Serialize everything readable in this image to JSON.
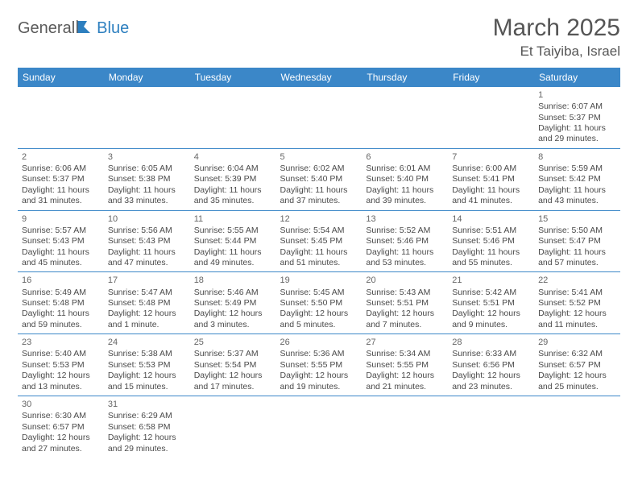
{
  "logo": {
    "part1": "General",
    "part2": "Blue"
  },
  "title": "March 2025",
  "location": "Et Taiyiba, Israel",
  "colors": {
    "header_bg": "#3b87c8",
    "header_text": "#ffffff",
    "border": "#3b87c8",
    "text": "#4a4a4a",
    "title": "#555555",
    "logo_gray": "#5a5a5a",
    "logo_blue": "#2d7fbf"
  },
  "weekdays": [
    "Sunday",
    "Monday",
    "Tuesday",
    "Wednesday",
    "Thursday",
    "Friday",
    "Saturday"
  ],
  "weeks": [
    [
      null,
      null,
      null,
      null,
      null,
      null,
      {
        "n": "1",
        "sr": "6:07 AM",
        "ss": "5:37 PM",
        "dl": "11 hours and 29 minutes."
      }
    ],
    [
      {
        "n": "2",
        "sr": "6:06 AM",
        "ss": "5:37 PM",
        "dl": "11 hours and 31 minutes."
      },
      {
        "n": "3",
        "sr": "6:05 AM",
        "ss": "5:38 PM",
        "dl": "11 hours and 33 minutes."
      },
      {
        "n": "4",
        "sr": "6:04 AM",
        "ss": "5:39 PM",
        "dl": "11 hours and 35 minutes."
      },
      {
        "n": "5",
        "sr": "6:02 AM",
        "ss": "5:40 PM",
        "dl": "11 hours and 37 minutes."
      },
      {
        "n": "6",
        "sr": "6:01 AM",
        "ss": "5:40 PM",
        "dl": "11 hours and 39 minutes."
      },
      {
        "n": "7",
        "sr": "6:00 AM",
        "ss": "5:41 PM",
        "dl": "11 hours and 41 minutes."
      },
      {
        "n": "8",
        "sr": "5:59 AM",
        "ss": "5:42 PM",
        "dl": "11 hours and 43 minutes."
      }
    ],
    [
      {
        "n": "9",
        "sr": "5:57 AM",
        "ss": "5:43 PM",
        "dl": "11 hours and 45 minutes."
      },
      {
        "n": "10",
        "sr": "5:56 AM",
        "ss": "5:43 PM",
        "dl": "11 hours and 47 minutes."
      },
      {
        "n": "11",
        "sr": "5:55 AM",
        "ss": "5:44 PM",
        "dl": "11 hours and 49 minutes."
      },
      {
        "n": "12",
        "sr": "5:54 AM",
        "ss": "5:45 PM",
        "dl": "11 hours and 51 minutes."
      },
      {
        "n": "13",
        "sr": "5:52 AM",
        "ss": "5:46 PM",
        "dl": "11 hours and 53 minutes."
      },
      {
        "n": "14",
        "sr": "5:51 AM",
        "ss": "5:46 PM",
        "dl": "11 hours and 55 minutes."
      },
      {
        "n": "15",
        "sr": "5:50 AM",
        "ss": "5:47 PM",
        "dl": "11 hours and 57 minutes."
      }
    ],
    [
      {
        "n": "16",
        "sr": "5:49 AM",
        "ss": "5:48 PM",
        "dl": "11 hours and 59 minutes."
      },
      {
        "n": "17",
        "sr": "5:47 AM",
        "ss": "5:48 PM",
        "dl": "12 hours and 1 minute."
      },
      {
        "n": "18",
        "sr": "5:46 AM",
        "ss": "5:49 PM",
        "dl": "12 hours and 3 minutes."
      },
      {
        "n": "19",
        "sr": "5:45 AM",
        "ss": "5:50 PM",
        "dl": "12 hours and 5 minutes."
      },
      {
        "n": "20",
        "sr": "5:43 AM",
        "ss": "5:51 PM",
        "dl": "12 hours and 7 minutes."
      },
      {
        "n": "21",
        "sr": "5:42 AM",
        "ss": "5:51 PM",
        "dl": "12 hours and 9 minutes."
      },
      {
        "n": "22",
        "sr": "5:41 AM",
        "ss": "5:52 PM",
        "dl": "12 hours and 11 minutes."
      }
    ],
    [
      {
        "n": "23",
        "sr": "5:40 AM",
        "ss": "5:53 PM",
        "dl": "12 hours and 13 minutes."
      },
      {
        "n": "24",
        "sr": "5:38 AM",
        "ss": "5:53 PM",
        "dl": "12 hours and 15 minutes."
      },
      {
        "n": "25",
        "sr": "5:37 AM",
        "ss": "5:54 PM",
        "dl": "12 hours and 17 minutes."
      },
      {
        "n": "26",
        "sr": "5:36 AM",
        "ss": "5:55 PM",
        "dl": "12 hours and 19 minutes."
      },
      {
        "n": "27",
        "sr": "5:34 AM",
        "ss": "5:55 PM",
        "dl": "12 hours and 21 minutes."
      },
      {
        "n": "28",
        "sr": "6:33 AM",
        "ss": "6:56 PM",
        "dl": "12 hours and 23 minutes."
      },
      {
        "n": "29",
        "sr": "6:32 AM",
        "ss": "6:57 PM",
        "dl": "12 hours and 25 minutes."
      }
    ],
    [
      {
        "n": "30",
        "sr": "6:30 AM",
        "ss": "6:57 PM",
        "dl": "12 hours and 27 minutes."
      },
      {
        "n": "31",
        "sr": "6:29 AM",
        "ss": "6:58 PM",
        "dl": "12 hours and 29 minutes."
      },
      null,
      null,
      null,
      null,
      null
    ]
  ],
  "labels": {
    "sunrise": "Sunrise: ",
    "sunset": "Sunset: ",
    "daylight": "Daylight: "
  }
}
